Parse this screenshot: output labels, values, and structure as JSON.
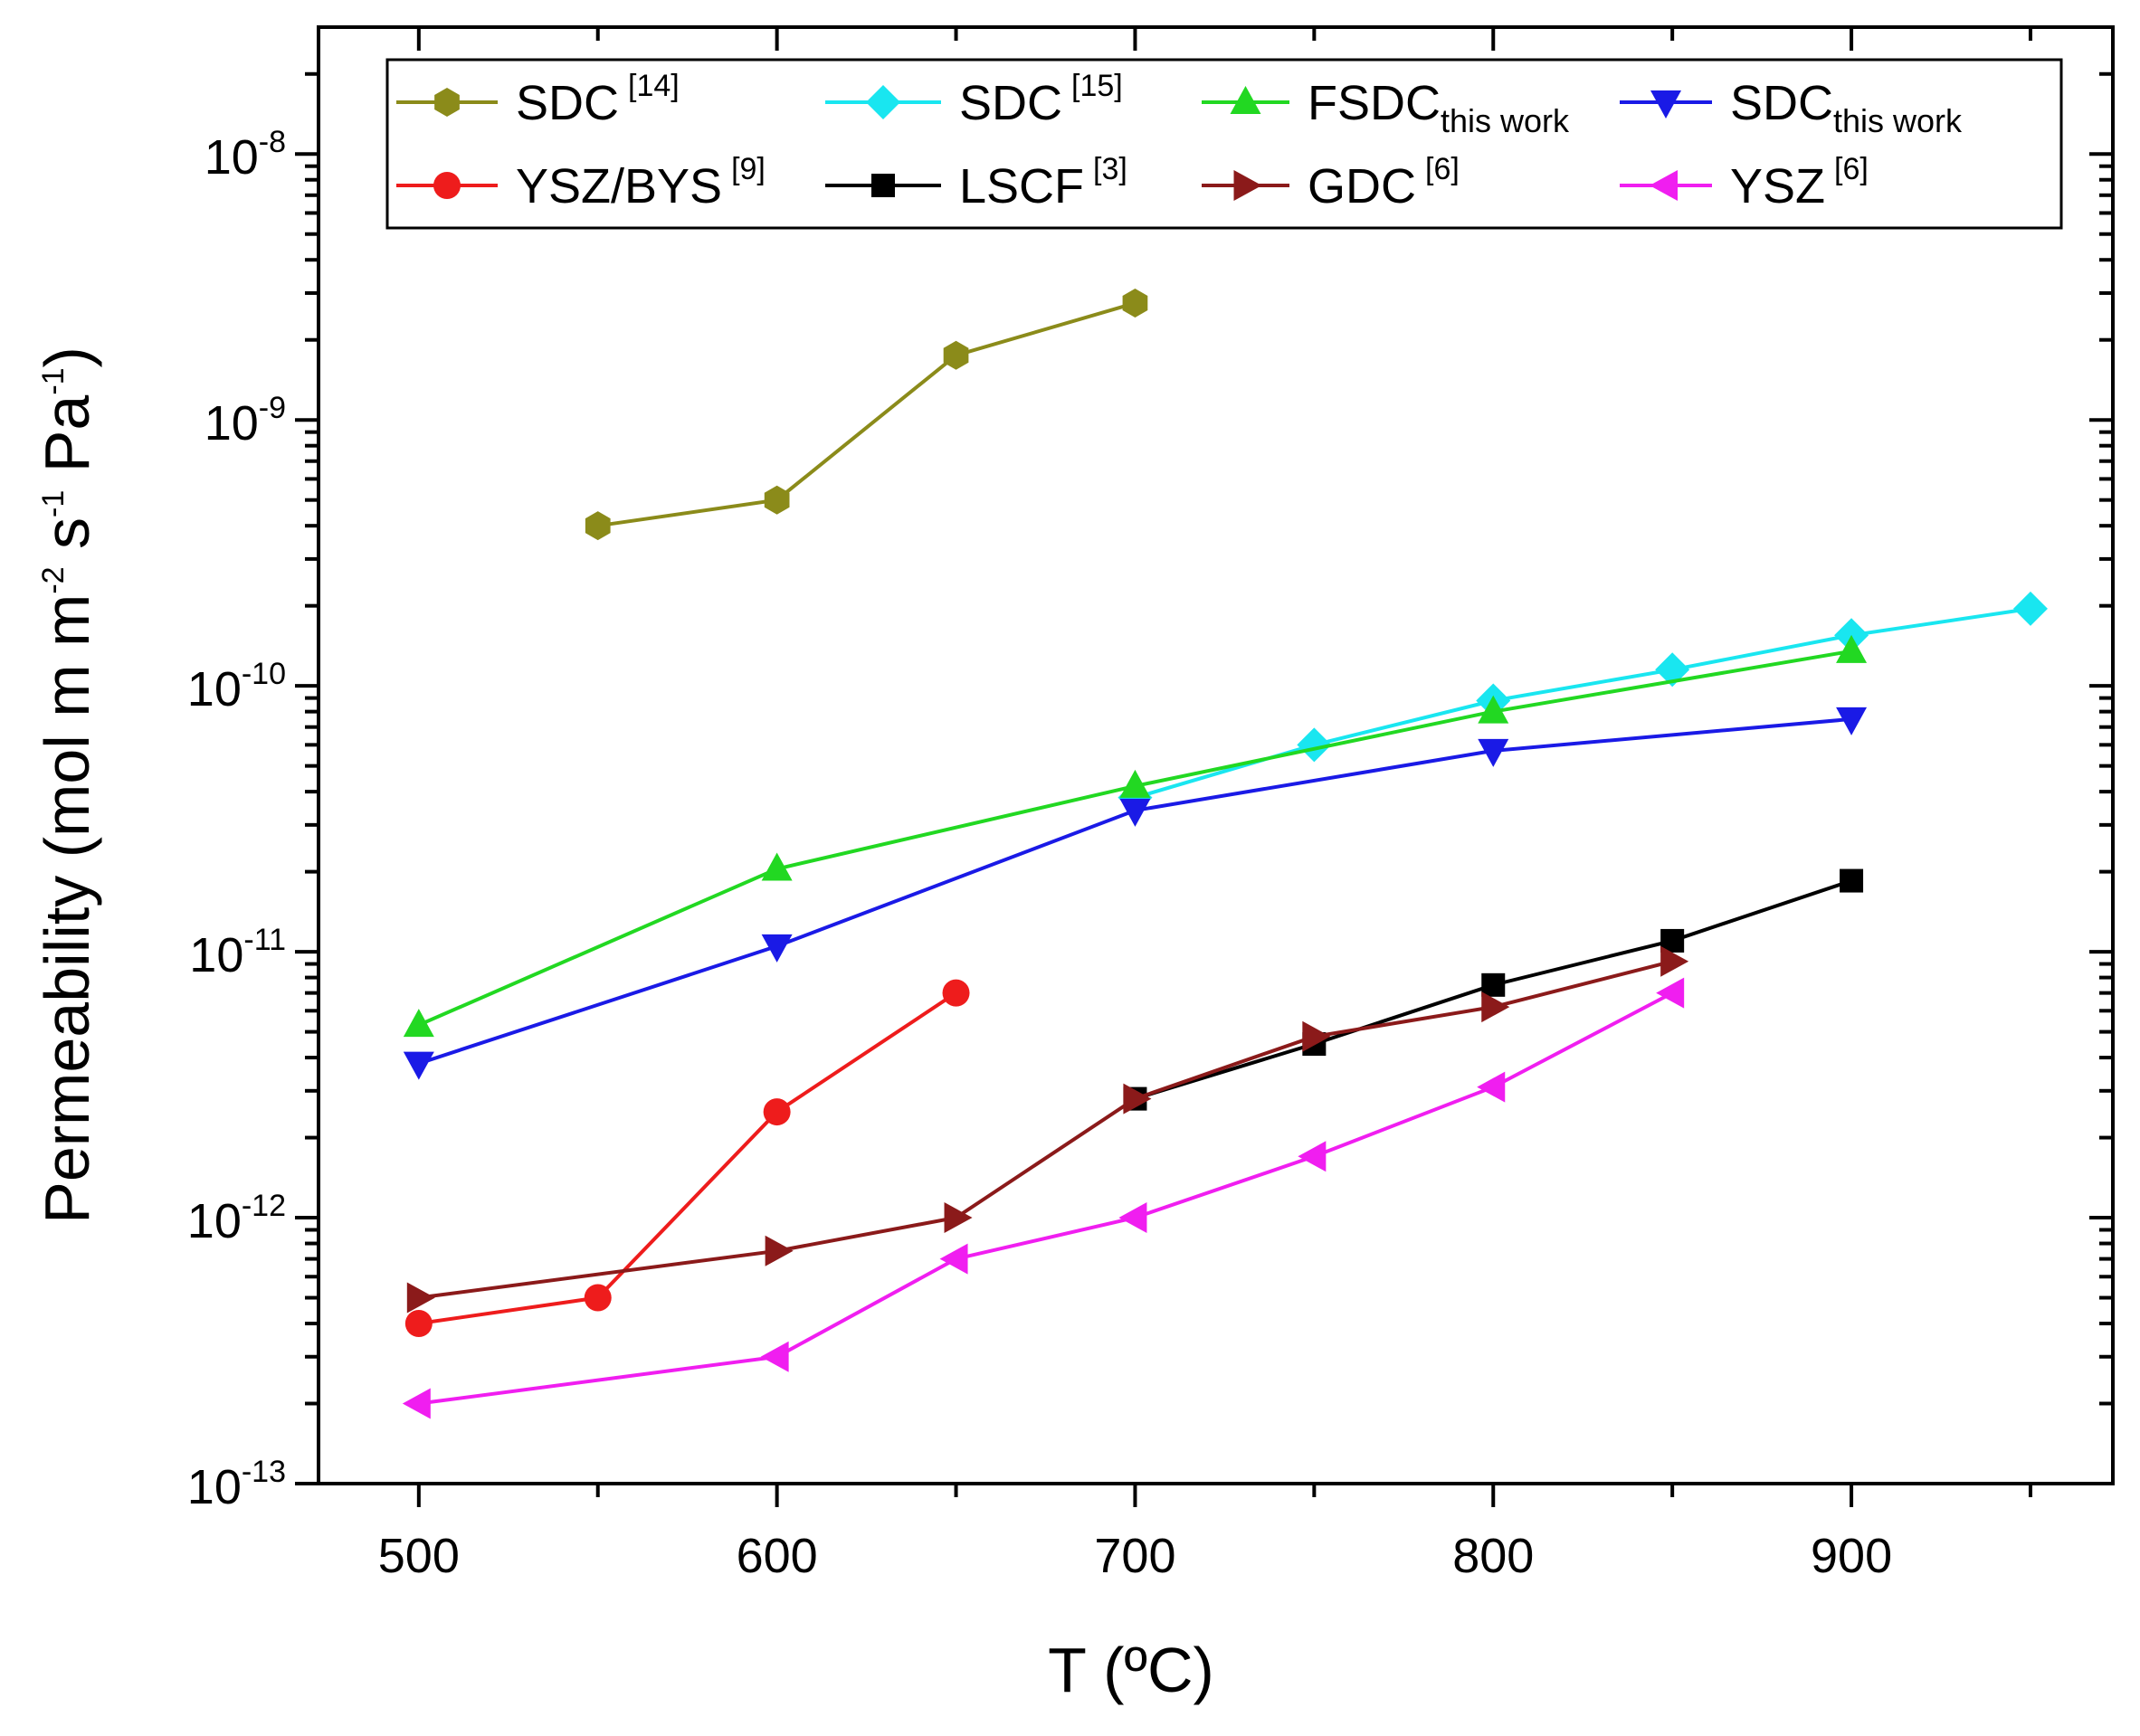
{
  "chart_data": {
    "type": "line",
    "yscale": "log",
    "xlabel": "T (ºC)",
    "ylabel": {
      "main": "Permeability (mol m m",
      "sup1": "-2",
      "mid1": " s",
      "sup2": "-1",
      "mid2": " Pa",
      "sup3": "-1",
      "end": ")"
    },
    "xlim": [
      472,
      973
    ],
    "ylim": [
      1e-13,
      3e-08
    ],
    "x_ticks": [
      {
        "value": 500,
        "label": "500"
      },
      {
        "value": 600,
        "label": "600"
      },
      {
        "value": 700,
        "label": "700"
      },
      {
        "value": 800,
        "label": "800"
      },
      {
        "value": 900,
        "label": "900"
      }
    ],
    "y_ticks": [
      {
        "exp": -13,
        "base": "10",
        "sup": "-13"
      },
      {
        "exp": -12,
        "base": "10",
        "sup": "-12"
      },
      {
        "exp": -11,
        "base": "10",
        "sup": "-11"
      },
      {
        "exp": -10,
        "base": "10",
        "sup": "-10"
      },
      {
        "exp": -9,
        "base": "10",
        "sup": "-9"
      },
      {
        "exp": -8,
        "base": "10",
        "sup": "-8"
      }
    ],
    "series": [
      {
        "key": "sdc14",
        "name": "SDC",
        "sup": "[14]",
        "sub": "",
        "color": "#8B8B1A",
        "marker": "hexagon",
        "x": [
          550,
          600,
          650,
          700
        ],
        "y": [
          4e-10,
          5e-10,
          1.75e-09,
          2.75e-09
        ]
      },
      {
        "key": "sdc15",
        "name": "SDC",
        "sup": "[15]",
        "sub": "",
        "color": "#19E6F0",
        "marker": "diamond",
        "x": [
          700,
          750,
          800,
          850,
          900,
          950
        ],
        "y": [
          3.8e-11,
          6e-11,
          8.8e-11,
          1.15e-10,
          1.55e-10,
          1.95e-10
        ]
      },
      {
        "key": "fsdc",
        "name": "FSDC",
        "sup": "",
        "sub": "this work",
        "color": "#22D822",
        "marker": "triangle-up",
        "x": [
          500,
          600,
          700,
          800,
          900
        ],
        "y": [
          5.3e-12,
          2.05e-11,
          4.2e-11,
          8e-11,
          1.35e-10
        ]
      },
      {
        "key": "sdcthis",
        "name": "SDC",
        "sup": "",
        "sub": "this work",
        "color": "#1A1AE6",
        "marker": "triangle-down",
        "x": [
          500,
          600,
          700,
          800,
          900
        ],
        "y": [
          3.8e-12,
          1.05e-11,
          3.4e-11,
          5.7e-11,
          7.5e-11
        ]
      },
      {
        "key": "yszbys",
        "name": "YSZ/BYS",
        "sup": "[9]",
        "sub": "",
        "color": "#EE1C1C",
        "marker": "circle",
        "x": [
          500,
          550,
          600,
          650
        ],
        "y": [
          4e-13,
          5e-13,
          2.5e-12,
          7e-12
        ]
      },
      {
        "key": "lscf",
        "name": "LSCF",
        "sup": "[3]",
        "sub": "",
        "color": "#000000",
        "marker": "square",
        "x": [
          700,
          750,
          800,
          850,
          900
        ],
        "y": [
          2.8e-12,
          4.5e-12,
          7.5e-12,
          1.1e-11,
          1.85e-11
        ]
      },
      {
        "key": "gdc",
        "name": "GDC",
        "sup": "[6]",
        "sub": "",
        "color": "#8B1A1A",
        "marker": "triangle-right",
        "x": [
          500,
          600,
          650,
          700,
          750,
          800,
          850
        ],
        "y": [
          5e-13,
          7.5e-13,
          1e-12,
          2.8e-12,
          4.8e-12,
          6.2e-12,
          9.2e-12
        ]
      },
      {
        "key": "ysz",
        "name": "YSZ",
        "sup": "[6]",
        "sub": "",
        "color": "#F01EF0",
        "marker": "triangle-left",
        "x": [
          500,
          600,
          650,
          700,
          750,
          800,
          850
        ],
        "y": [
          2e-13,
          3e-13,
          7e-13,
          1e-12,
          1.7e-12,
          3.1e-12,
          7e-12
        ]
      }
    ],
    "legend": {
      "location": "top",
      "rows": [
        [
          "sdc14",
          "sdc15",
          "fsdc",
          "sdcthis"
        ],
        [
          "yszbys",
          "lscf",
          "gdc",
          "ysz"
        ]
      ]
    }
  }
}
